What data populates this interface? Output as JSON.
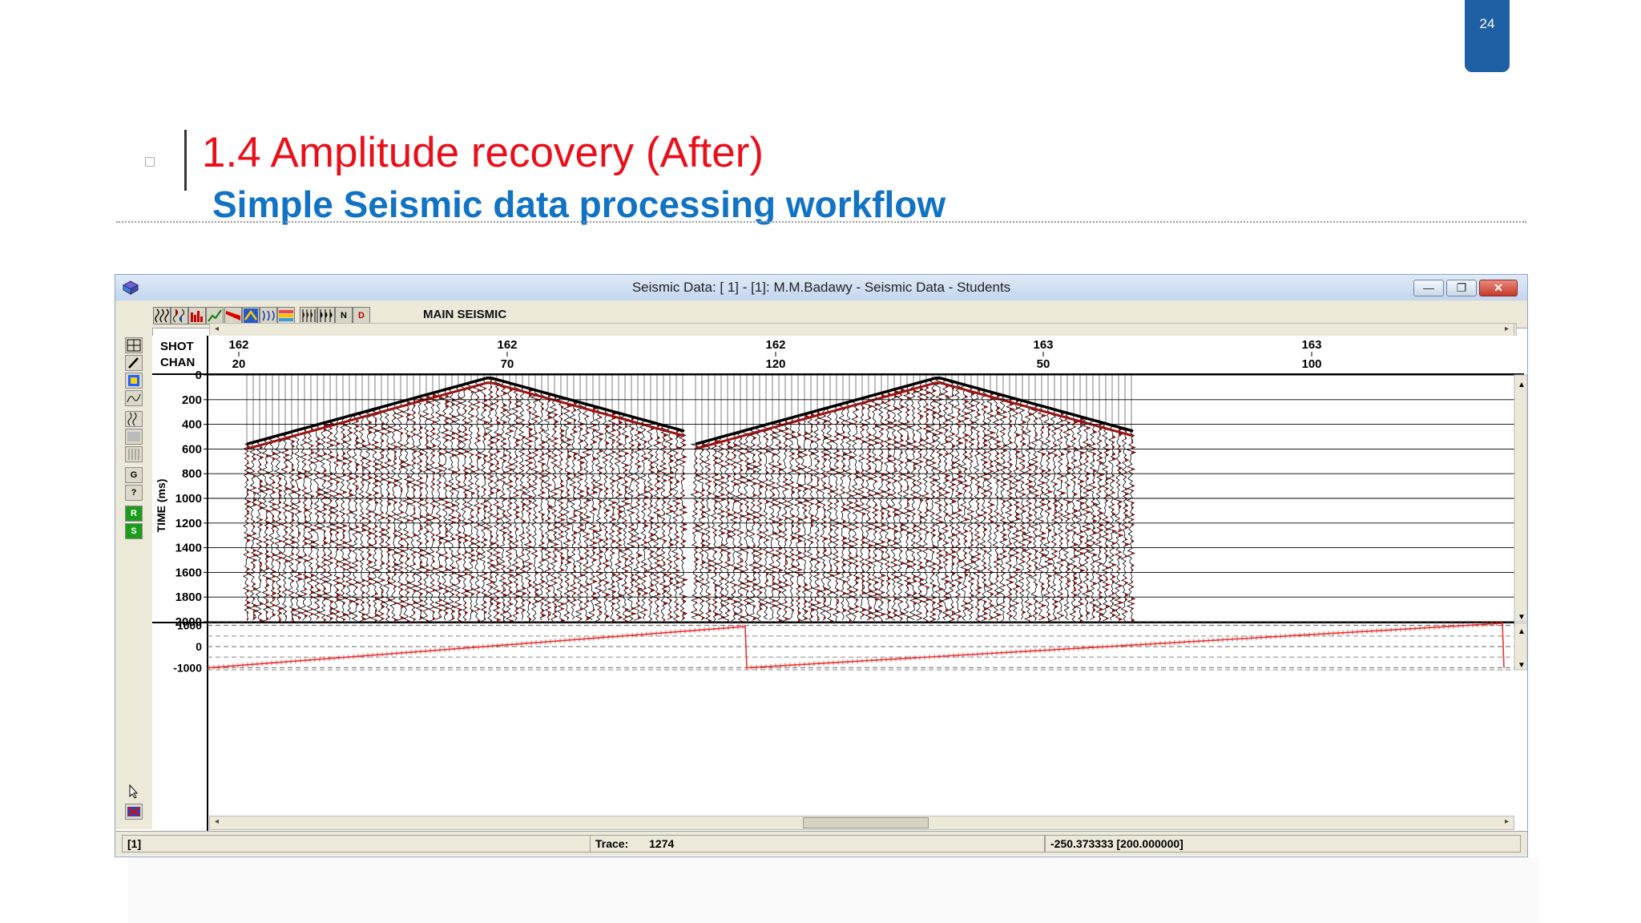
{
  "slide": {
    "page_number": "24",
    "title": "1.4 Amplitude recovery (After)",
    "subtitle": "Simple Seismic data processing workflow"
  },
  "window": {
    "title": "Seismic Data: [  1] - [1]: M.M.Badawy - Seismic Data - Students",
    "minimize_glyph": "—",
    "restore_glyph": "❐",
    "close_glyph": "✕"
  },
  "toolbar": {
    "label": "MAIN SEISMIC",
    "icons": [
      "wiggle-icon",
      "wiggle-fill-icon",
      "bar-icon",
      "graph-icon",
      "red-flag-icon",
      "map-icon",
      "pick-icon",
      "palette-icon",
      "trace-icon",
      "trace-fill-icon",
      "n-icon",
      "d-icon"
    ],
    "letter_icons": {
      "n": "N",
      "d": "D"
    }
  },
  "side_toolbar": {
    "icons": [
      "grid-icon",
      "pencil-icon",
      "color-bar-icon",
      "spectrum-icon",
      "wiggle-icon",
      "shading-icon",
      "density-icon",
      "gather-icon",
      "query-icon",
      "r-icon",
      "s-icon"
    ],
    "letters": {
      "g": "G",
      "q": "?",
      "r": "R",
      "s": "S"
    },
    "bottom_icons": [
      "pointer-icon",
      "clear-icon"
    ]
  },
  "chart_data": {
    "type": "seismic-wiggle",
    "header_labels": {
      "shot": "SHOT",
      "chan": "CHAN"
    },
    "ticks": [
      {
        "shot": "162",
        "chan": "20"
      },
      {
        "shot": "162",
        "chan": "70"
      },
      {
        "shot": "162",
        "chan": "120"
      },
      {
        "shot": "163",
        "chan": "50"
      },
      {
        "shot": "163",
        "chan": "100"
      }
    ],
    "ylabel": "TIME (ms)",
    "ylim": [
      0,
      2000
    ],
    "yticks": [
      "0",
      "200",
      "400",
      "600",
      "800",
      "1000",
      "1200",
      "1400",
      "1600",
      "1800",
      "2000"
    ],
    "lower_panel": {
      "yticks": [
        "1000",
        "0",
        "-1000"
      ],
      "ylim": [
        -1100,
        1100
      ],
      "sawtooth_segments": [
        [
          -1000,
          950
        ],
        [
          -1000,
          1100
        ]
      ],
      "color": "#e83030"
    },
    "shots": 2,
    "trace_color": "#000000",
    "fill_color": "#9c1313"
  },
  "status": {
    "cell1": "[1]",
    "trace_label": "Trace:",
    "trace_value": "1274",
    "readout": "-250.373333 [200.000000]"
  }
}
